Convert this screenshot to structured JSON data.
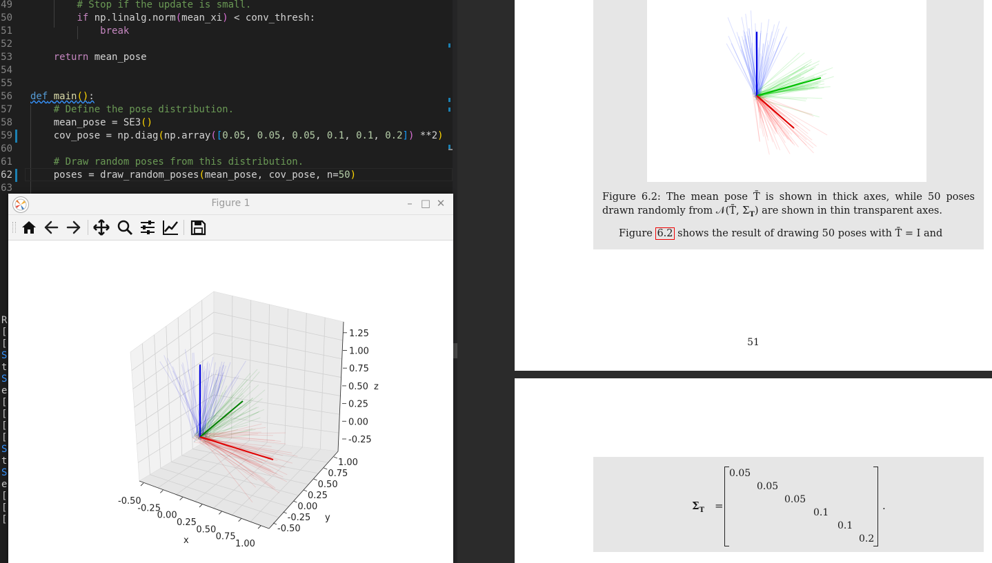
{
  "editor": {
    "lines": [
      {
        "num": "49",
        "tokens": [
          [
            "        ",
            ""
          ],
          [
            "# Stop if the update is small.",
            "cm"
          ]
        ]
      },
      {
        "num": "50",
        "tokens": [
          [
            "        ",
            ""
          ],
          [
            "if",
            "kw2"
          ],
          [
            " np.linalg.norm",
            ""
          ],
          [
            "(",
            "br2"
          ],
          [
            "mean_xi",
            ""
          ],
          [
            ")",
            "br2"
          ],
          [
            " < conv_thresh:",
            ""
          ]
        ]
      },
      {
        "num": "51",
        "tokens": [
          [
            "            ",
            ""
          ],
          [
            "break",
            "kw2"
          ]
        ]
      },
      {
        "num": "52",
        "tokens": []
      },
      {
        "num": "53",
        "tokens": [
          [
            "    ",
            ""
          ],
          [
            "return",
            "kw2"
          ],
          [
            " mean_pose",
            ""
          ]
        ]
      },
      {
        "num": "54",
        "tokens": []
      },
      {
        "num": "55",
        "tokens": []
      },
      {
        "num": "56",
        "tokens": [
          [
            "def",
            "kw"
          ],
          [
            " ",
            ""
          ],
          [
            "main",
            "fn"
          ],
          [
            "()",
            "br"
          ],
          [
            ":",
            ""
          ]
        ]
      },
      {
        "num": "57",
        "tokens": [
          [
            "    ",
            ""
          ],
          [
            "# Define the pose distribution.",
            "cm"
          ]
        ]
      },
      {
        "num": "58",
        "tokens": [
          [
            "    mean_pose = SE3",
            ""
          ],
          [
            "()",
            "br"
          ]
        ]
      },
      {
        "num": "59",
        "tokens": [
          [
            "    cov_pose = np.diag",
            ""
          ],
          [
            "(",
            "br"
          ],
          [
            "np.array",
            ""
          ],
          [
            "(",
            "br2"
          ],
          [
            "[",
            "br3"
          ],
          [
            "0.05",
            "num"
          ],
          [
            ", ",
            ""
          ],
          [
            "0.05",
            "num"
          ],
          [
            ", ",
            ""
          ],
          [
            "0.05",
            "num"
          ],
          [
            ", ",
            ""
          ],
          [
            "0.1",
            "num"
          ],
          [
            ", ",
            ""
          ],
          [
            "0.1",
            "num"
          ],
          [
            ", ",
            ""
          ],
          [
            "0.2",
            "num"
          ],
          [
            "]",
            "br3"
          ],
          [
            ")",
            "br2"
          ],
          [
            " **2",
            ""
          ],
          [
            ")",
            "br"
          ]
        ]
      },
      {
        "num": "60",
        "tokens": []
      },
      {
        "num": "61",
        "tokens": [
          [
            "    ",
            ""
          ],
          [
            "# Draw random poses from this distribution.",
            "cm"
          ]
        ]
      },
      {
        "num": "62",
        "tokens": [
          [
            "    poses = draw_random_poses",
            ""
          ],
          [
            "(",
            "br"
          ],
          [
            "mean_pose, cov_pose, n=",
            ""
          ],
          [
            "50",
            "num"
          ],
          [
            ")",
            "br"
          ]
        ]
      },
      {
        "num": "63",
        "tokens": []
      }
    ],
    "active_line": "62",
    "terminal_glyphs": [
      "R",
      "[",
      "[",
      "S",
      "t",
      "S",
      "e",
      "[",
      "[",
      "[",
      "[",
      "S",
      "t",
      "S",
      "e",
      "[",
      "[",
      "["
    ]
  },
  "figure_window": {
    "title": "Figure 1",
    "toolbar": [
      "home-icon",
      "back-icon",
      "forward-icon",
      "pan-icon",
      "zoom-icon",
      "configure-subplots-icon",
      "edit-axes-icon",
      "save-icon"
    ],
    "axes": {
      "x_label": "x",
      "y_label": "y",
      "z_label": "z",
      "x_ticks": [
        "-0.50",
        "-0.25",
        "0.00",
        "0.25",
        "0.50",
        "0.75",
        "1.00"
      ],
      "y_ticks": [
        "-0.50",
        "-0.25",
        "0.00",
        "0.25",
        "0.50",
        "0.75",
        "1.00"
      ],
      "z_ticks": [
        "-0.25",
        "0.00",
        "0.25",
        "0.50",
        "0.75",
        "1.00",
        "1.25"
      ]
    },
    "axis_colors": {
      "x": "#e00000",
      "y": "#008000",
      "z": "#0000e0"
    }
  },
  "pdf": {
    "caption_prefix": "Figure 6.2:",
    "caption_line1": "The mean pose T̄ is shown in thick axes, while 50 poses drawn",
    "caption_line2": "randomly from 𝒩(T̄, Σ",
    "caption_sub": "T",
    "caption_line2_end": ") are shown in thin transparent axes.",
    "body_prefix": "Figure",
    "body_ref": "6.2",
    "body_suffix": "shows the result of drawing 50 poses with T̄ = I and",
    "page_number": "51",
    "equation_lhs": "Σ",
    "equation_lhs_sub": "T",
    "equation_eq": "=",
    "matrix_diag": [
      "0.05",
      "0.05",
      "0.05",
      "0.1",
      "0.1",
      "0.2"
    ],
    "equation_end": "."
  }
}
